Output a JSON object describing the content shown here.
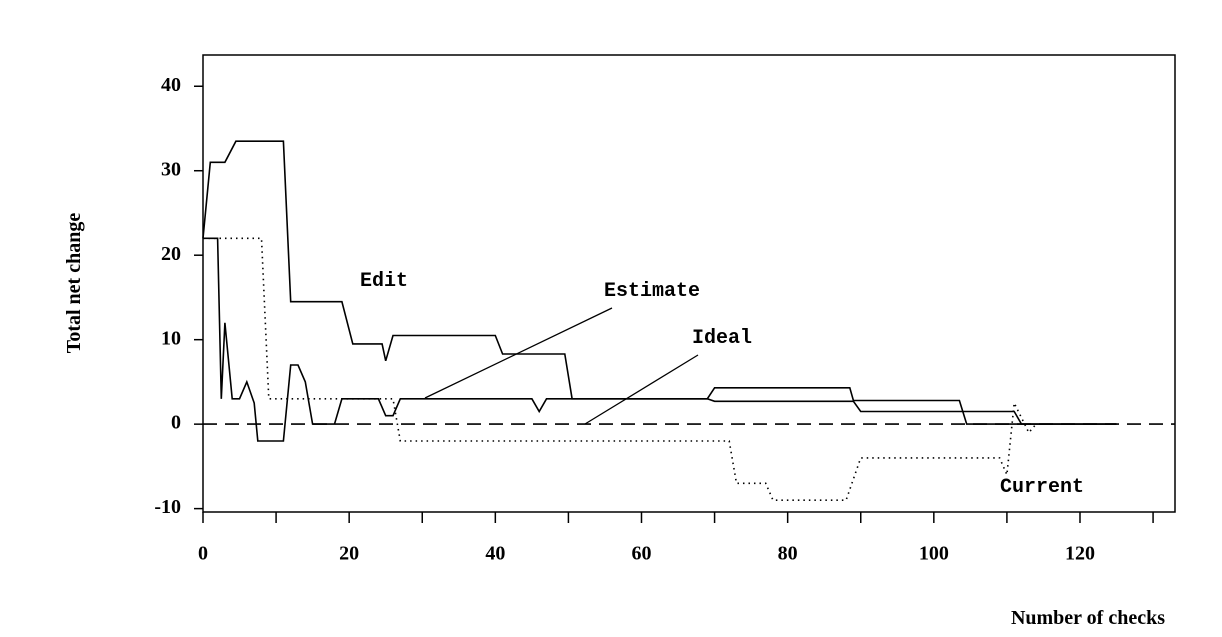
{
  "chart_data": {
    "type": "line",
    "x_label": "Number of checks",
    "y_label": "Total net change",
    "xlim": [
      0,
      133
    ],
    "ylim": [
      -10.4,
      43.7
    ],
    "xticks": [
      0,
      20,
      40,
      60,
      80,
      100,
      120
    ],
    "x_minor_ticks": [
      10,
      30,
      50,
      70,
      90,
      110,
      130
    ],
    "yticks": [
      -10,
      0,
      10,
      20,
      30,
      40
    ],
    "color": "#000000",
    "series": [
      {
        "name": "Edit",
        "style": "solid",
        "x": [
          0,
          1,
          3,
          4.5,
          11,
          12,
          19,
          20.5,
          24.5,
          25,
          26,
          40,
          41,
          49.5,
          50.5,
          69,
          70,
          88.5,
          89,
          103.5,
          104.5,
          125
        ],
        "values": [
          22,
          31,
          31,
          33.5,
          33.5,
          14.5,
          14.5,
          9.5,
          9.5,
          7.5,
          10.5,
          10.5,
          8.3,
          8.3,
          3,
          3,
          4.3,
          4.3,
          2.8,
          2.8,
          0,
          0
        ]
      },
      {
        "name": "Estimate",
        "style": "solid",
        "x": [
          0,
          2,
          2.5,
          3,
          4,
          5,
          6,
          7,
          7.5,
          11,
          12,
          13,
          14,
          15,
          18,
          19,
          24,
          25,
          26,
          27,
          45,
          46,
          47,
          69,
          70,
          89,
          90,
          111,
          112,
          125
        ],
        "values": [
          22,
          22,
          3,
          12,
          3,
          3,
          5,
          2.5,
          -2,
          -2,
          7,
          7,
          5,
          0,
          0,
          3,
          3,
          1,
          1,
          3,
          3,
          1.5,
          3,
          3,
          2.7,
          2.7,
          1.5,
          1.5,
          0,
          0
        ]
      },
      {
        "name": "Ideal",
        "style": "dashed",
        "x": [
          0,
          133
        ],
        "values": [
          0,
          0
        ]
      },
      {
        "name": "Current",
        "style": "dotted",
        "x": [
          0,
          8,
          9,
          26,
          27,
          72,
          73,
          77,
          78,
          88,
          90,
          109,
          110,
          111,
          113,
          114
        ],
        "values": [
          22,
          22,
          3,
          3,
          -2,
          -2,
          -7,
          -7,
          -9,
          -9,
          -4,
          -4,
          -6,
          2.5,
          -1,
          0
        ]
      }
    ]
  }
}
